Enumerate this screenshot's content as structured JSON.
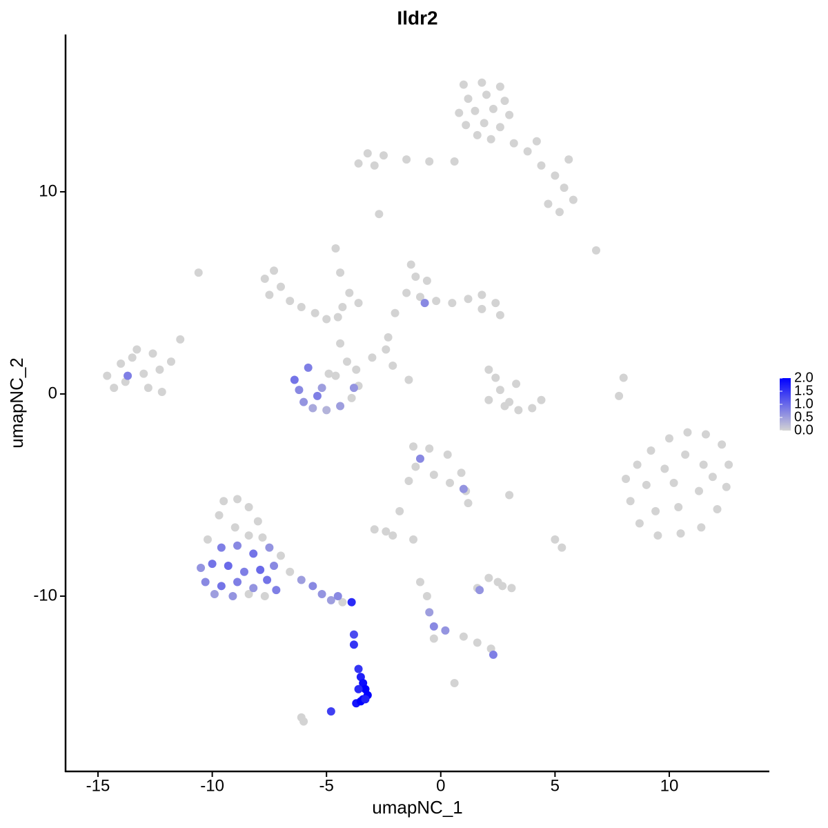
{
  "chart_data": {
    "type": "scatter",
    "title": "Ildr2",
    "x_label": "umapNC_1",
    "y_label": "umapNC_2",
    "xlim": [
      -16.42,
      14.38
    ],
    "ylim": [
      -18.67,
      17.78
    ],
    "xticks": [
      -15,
      -10,
      -5,
      0,
      5,
      10
    ],
    "yticks": [
      -10,
      0,
      10
    ],
    "color_low": "#d3d3d3",
    "color_high": "#0000ff",
    "clim": [
      0,
      2
    ],
    "cticks": [
      {
        "value": 2,
        "label": "2.0"
      },
      {
        "value": 1.5,
        "label": "1.5"
      },
      {
        "value": 1,
        "label": "1.0"
      },
      {
        "value": 0.5,
        "label": "0.5"
      },
      {
        "value": 0,
        "label": "0.0"
      }
    ],
    "x": [
      1.0,
      1.8,
      2.6,
      1.2,
      2.0,
      2.8,
      0.8,
      1.5,
      2.3,
      3.0,
      1.1,
      1.9,
      2.6,
      1.6,
      2.2,
      3.2,
      3.8,
      4.4,
      5.0,
      5.4,
      5.8,
      4.7,
      5.2,
      5.6,
      4.2,
      0.6,
      -0.5,
      -1.5,
      -2.5,
      -3.2,
      -3.6,
      -2.9,
      -2.7,
      6.8,
      -14.6,
      -14.0,
      -13.3,
      -12.6,
      -13.8,
      -13.0,
      -12.3,
      -13.5,
      -12.8,
      -12.2,
      -11.8,
      -11.4,
      -14.3,
      -10.6,
      -7.7,
      -7.3,
      -7.0,
      -7.5,
      -6.6,
      -6.1,
      -5.5,
      -5.0,
      -4.5,
      -4.3,
      -4.0,
      -4.4,
      -4.6,
      -3.6,
      -4.4,
      -1.3,
      -1.1,
      -0.6,
      -1.5,
      -0.9,
      -0.2,
      0.5,
      1.2,
      1.8,
      2.4,
      2.6,
      1.8,
      -2.0,
      -2.3,
      -2.4,
      -3.9,
      -3.6,
      -3.7,
      -4.1,
      -4.6,
      -4.9,
      -3.0,
      -2.1,
      -1.4,
      2.1,
      2.4,
      2.6,
      3.0,
      3.4,
      4.0,
      4.4,
      2.1,
      2.8,
      3.3,
      8.0,
      7.8,
      8.1,
      8.6,
      9.2,
      10.0,
      10.8,
      11.6,
      12.3,
      12.6,
      12.5,
      12.1,
      11.4,
      10.5,
      9.5,
      8.7,
      8.3,
      9.0,
      9.8,
      10.7,
      11.5,
      11.3,
      10.4,
      9.4,
      10.2,
      11.9,
      -1.2,
      -0.5,
      0.3,
      0.9,
      1.1,
      0.4,
      -0.3,
      -1.1,
      -1.4,
      1.2,
      3.0,
      -9.5,
      -8.9,
      -8.4,
      -8.0,
      -9.7,
      -9.0,
      -8.4,
      -7.8,
      -10.2,
      -7.0,
      -8.4,
      -7.7,
      -6.6,
      -4.3,
      -2.9,
      -2.4,
      -2.1,
      -1.8,
      -1.2,
      5.0,
      5.3,
      1.6,
      2.1,
      2.7,
      3.1,
      2.5,
      -0.9,
      -0.6,
      -0.3,
      1.0,
      1.6,
      2.2,
      0.6,
      -6.0,
      -6.1,
      -13.7,
      -0.9,
      -0.7,
      1.0,
      1.7,
      -0.5,
      -0.3,
      0.2,
      2.3,
      -6.4,
      -6.2,
      -6.0,
      -5.6,
      -5.0,
      -4.4,
      -5.2,
      -5.8,
      -3.8,
      -5.4,
      -9.6,
      -8.9,
      -8.2,
      -7.5,
      -10.5,
      -10.0,
      -9.3,
      -8.6,
      -7.9,
      -7.3,
      -10.3,
      -9.6,
      -8.9,
      -8.2,
      -7.6,
      -9.9,
      -9.1,
      -7.2,
      -6.1,
      -5.6,
      -5.2,
      -4.8,
      -4.5,
      -3.9,
      -3.8,
      -3.8,
      -3.6,
      -3.5,
      -3.4,
      -3.3,
      -3.2,
      -3.4,
      -3.7,
      -3.5,
      -3.6,
      -3.3,
      -4.8
    ],
    "y": [
      15.3,
      15.4,
      15.2,
      14.6,
      14.8,
      14.5,
      13.9,
      14.0,
      14.1,
      13.8,
      13.3,
      13.4,
      13.2,
      12.8,
      12.6,
      12.4,
      12.0,
      11.3,
      10.8,
      10.2,
      9.6,
      9.4,
      9.0,
      11.6,
      12.5,
      11.5,
      11.5,
      11.6,
      11.8,
      11.9,
      11.4,
      11.3,
      8.9,
      7.1,
      0.9,
      1.5,
      2.2,
      2.0,
      0.6,
      1.0,
      1.2,
      1.8,
      0.3,
      0.1,
      1.6,
      2.7,
      0.3,
      6.0,
      5.7,
      6.1,
      5.3,
      4.9,
      4.6,
      4.3,
      4.0,
      3.7,
      3.8,
      4.3,
      5.0,
      6.0,
      7.2,
      4.5,
      2.5,
      6.4,
      5.8,
      5.6,
      5.0,
      4.8,
      4.6,
      4.5,
      4.7,
      4.9,
      4.5,
      3.9,
      4.2,
      4.0,
      2.8,
      2.2,
      -0.2,
      0.4,
      1.2,
      1.6,
      0.9,
      1.0,
      1.8,
      1.4,
      0.7,
      1.2,
      0.8,
      0.2,
      -0.4,
      -0.8,
      -0.7,
      -0.3,
      -0.3,
      -0.6,
      0.5,
      0.8,
      -0.1,
      -4.2,
      -3.5,
      -2.8,
      -2.2,
      -1.9,
      -2.0,
      -2.5,
      -3.5,
      -4.6,
      -5.7,
      -6.6,
      -6.9,
      -7.0,
      -6.4,
      -5.3,
      -4.5,
      -3.7,
      -3.0,
      -3.5,
      -4.8,
      -5.6,
      -5.8,
      -4.4,
      -4.1,
      -2.6,
      -2.7,
      -3.0,
      -3.9,
      -4.8,
      -4.4,
      -4.0,
      -3.6,
      -4.3,
      -5.4,
      -5.0,
      -5.3,
      -5.2,
      -5.6,
      -6.3,
      -6.0,
      -6.6,
      -7.0,
      -7.1,
      -7.2,
      -8.0,
      -9.9,
      -10.0,
      -8.8,
      -10.3,
      -6.7,
      -6.8,
      -7.0,
      -5.8,
      -7.2,
      -7.2,
      -7.6,
      -9.6,
      -9.1,
      -9.5,
      -9.6,
      -9.3,
      -9.3,
      -10.0,
      -12.1,
      -12.0,
      -12.3,
      -12.6,
      -14.3,
      -16.2,
      -16.0,
      0.9,
      -3.2,
      4.5,
      -4.7,
      -9.7,
      -10.8,
      -11.5,
      -11.7,
      -12.9,
      0.7,
      0.2,
      -0.4,
      -0.7,
      -0.8,
      -0.6,
      0.3,
      1.3,
      0.3,
      -0.1,
      -7.6,
      -7.5,
      -7.9,
      -7.6,
      -8.6,
      -8.4,
      -8.5,
      -8.8,
      -8.7,
      -8.5,
      -9.3,
      -9.5,
      -9.3,
      -9.6,
      -9.2,
      -9.9,
      -10.0,
      -9.7,
      -9.2,
      -9.5,
      -9.9,
      -10.2,
      -10.0,
      -10.3,
      -11.9,
      -12.4,
      -13.6,
      -14.0,
      -14.3,
      -14.6,
      -14.9,
      -15.1,
      -15.3,
      -15.2,
      -14.6,
      -15.1,
      -15.7
    ],
    "values": [
      0,
      0,
      0,
      0,
      0,
      0,
      0,
      0,
      0,
      0,
      0,
      0,
      0,
      0,
      0,
      0,
      0,
      0,
      0,
      0,
      0,
      0,
      0,
      0,
      0,
      0,
      0,
      0,
      0,
      0,
      0,
      0,
      0,
      0,
      0,
      0,
      0,
      0,
      0,
      0,
      0,
      0,
      0,
      0,
      0,
      0,
      0,
      0,
      0,
      0,
      0,
      0,
      0,
      0,
      0,
      0,
      0,
      0,
      0,
      0,
      0,
      0,
      0,
      0,
      0,
      0,
      0,
      0,
      0,
      0,
      0,
      0,
      0,
      0,
      0,
      0,
      0,
      0,
      0,
      0,
      0,
      0,
      0,
      0,
      0,
      0,
      0,
      0,
      0,
      0,
      0,
      0,
      0,
      0,
      0,
      0,
      0,
      0,
      0,
      0,
      0,
      0,
      0,
      0,
      0,
      0,
      0,
      0,
      0,
      0,
      0,
      0,
      0,
      0,
      0,
      0,
      0,
      0,
      0,
      0,
      0,
      0,
      0,
      0,
      0,
      0,
      0,
      0,
      0,
      0,
      0,
      0,
      0,
      0,
      0,
      0,
      0,
      0,
      0,
      0,
      0,
      0,
      0,
      0,
      0,
      0,
      0,
      0,
      0,
      0,
      0,
      0,
      0,
      0,
      0,
      0,
      0,
      0,
      0,
      0,
      0,
      0,
      0,
      0,
      0,
      0,
      0,
      0,
      0,
      0.8,
      0.7,
      0.7,
      0.6,
      0.6,
      0.5,
      0.7,
      0.6,
      0.8,
      0.9,
      0.7,
      0.6,
      0.4,
      0.3,
      0.5,
      0.5,
      0.8,
      0.6,
      0.8,
      0.8,
      0.7,
      0.9,
      0.6,
      0.6,
      0.9,
      1.0,
      0.8,
      1.0,
      0.7,
      0.7,
      0.9,
      0.8,
      0.6,
      0.9,
      0.5,
      0.6,
      0.8,
      0.5,
      0.7,
      0.6,
      0.5,
      0.7,
      1.6,
      1.3,
      1.5,
      1.5,
      1.7,
      1.9,
      2.0,
      2.0,
      1.9,
      1.8,
      2.0,
      1.6,
      1.7,
      1.4
    ]
  }
}
